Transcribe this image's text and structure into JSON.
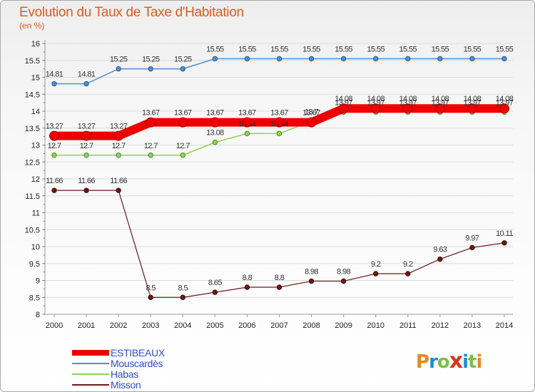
{
  "title": "Evolution du Taux de Taxe d'Habitation",
  "subtitle": "(en %)",
  "logo": {
    "text": "ProXiti",
    "letters": [
      "P",
      "r",
      "o",
      "x",
      "i",
      "t",
      "i"
    ]
  },
  "colors": {
    "ESTIBEAUX": "#ee0000",
    "Mouscardès": "#4f8fd1",
    "Habas": "#8fd44a",
    "Misson": "#6b1a1a"
  },
  "chart_data": {
    "type": "line",
    "x": [
      "2000",
      "2001",
      "2002",
      "2003",
      "2004",
      "2005",
      "2006",
      "2007",
      "2008",
      "2009",
      "2010",
      "2011",
      "2012",
      "2013",
      "2014"
    ],
    "ylim": [
      8,
      16
    ],
    "yticks": [
      "8",
      "8.5",
      "9",
      "9.5",
      "10",
      "10.5",
      "11",
      "11.5",
      "12",
      "12.5",
      "13",
      "13.5",
      "14",
      "14.5",
      "15",
      "15.5",
      "16"
    ],
    "grid": "horizontal",
    "legend_position": "bottom-left",
    "series": [
      {
        "name": "ESTIBEAUX",
        "values": [
          13.27,
          13.27,
          13.27,
          13.67,
          13.67,
          13.67,
          13.67,
          13.67,
          13.67,
          14.08,
          14.08,
          14.08,
          14.08,
          14.08,
          14.08
        ],
        "labels": [
          "13.27",
          "13.27",
          "13.27",
          "13.67",
          "13.67",
          "13.67",
          "13.67",
          "13.67",
          "13.67",
          "14.08",
          "14.08",
          "14.08",
          "14.08",
          "14.08",
          "14.08"
        ]
      },
      {
        "name": "Mouscardès",
        "values": [
          14.81,
          14.81,
          15.25,
          15.25,
          15.25,
          15.55,
          15.55,
          15.55,
          15.55,
          15.55,
          15.55,
          15.55,
          15.55,
          15.55,
          15.55
        ],
        "labels": [
          "14.81",
          "14.81",
          "15.25",
          "15.25",
          "15.25",
          "15.55",
          "15.55",
          "15.55",
          "15.55",
          "15.55",
          "15.55",
          "15.55",
          "15.55",
          "15.55",
          "15.55"
        ]
      },
      {
        "name": "Habas",
        "values": [
          12.7,
          12.7,
          12.7,
          12.7,
          12.7,
          13.08,
          13.34,
          13.34,
          13.7,
          13.97,
          13.97,
          13.97,
          13.97,
          13.97,
          13.97
        ],
        "labels": [
          "12.7",
          "12.7",
          "12.7",
          "12.7",
          "12.7",
          "13.08",
          "13.34",
          "13.34",
          "13.7",
          "13.97",
          "13.97",
          "13.97",
          "13.97",
          "13.97",
          "13.97"
        ]
      },
      {
        "name": "Misson",
        "values": [
          11.66,
          11.66,
          11.66,
          8.5,
          8.5,
          8.65,
          8.8,
          8.8,
          8.98,
          8.98,
          9.2,
          9.2,
          9.63,
          9.97,
          10.11
        ],
        "labels": [
          "11.66",
          "11.66",
          "11.66",
          "8.5",
          "8.5",
          "8.65",
          "8.8",
          "8.8",
          "8.98",
          "8.98",
          "9.2",
          "9.2",
          "9.63",
          "9.97",
          "10.11"
        ]
      }
    ]
  }
}
